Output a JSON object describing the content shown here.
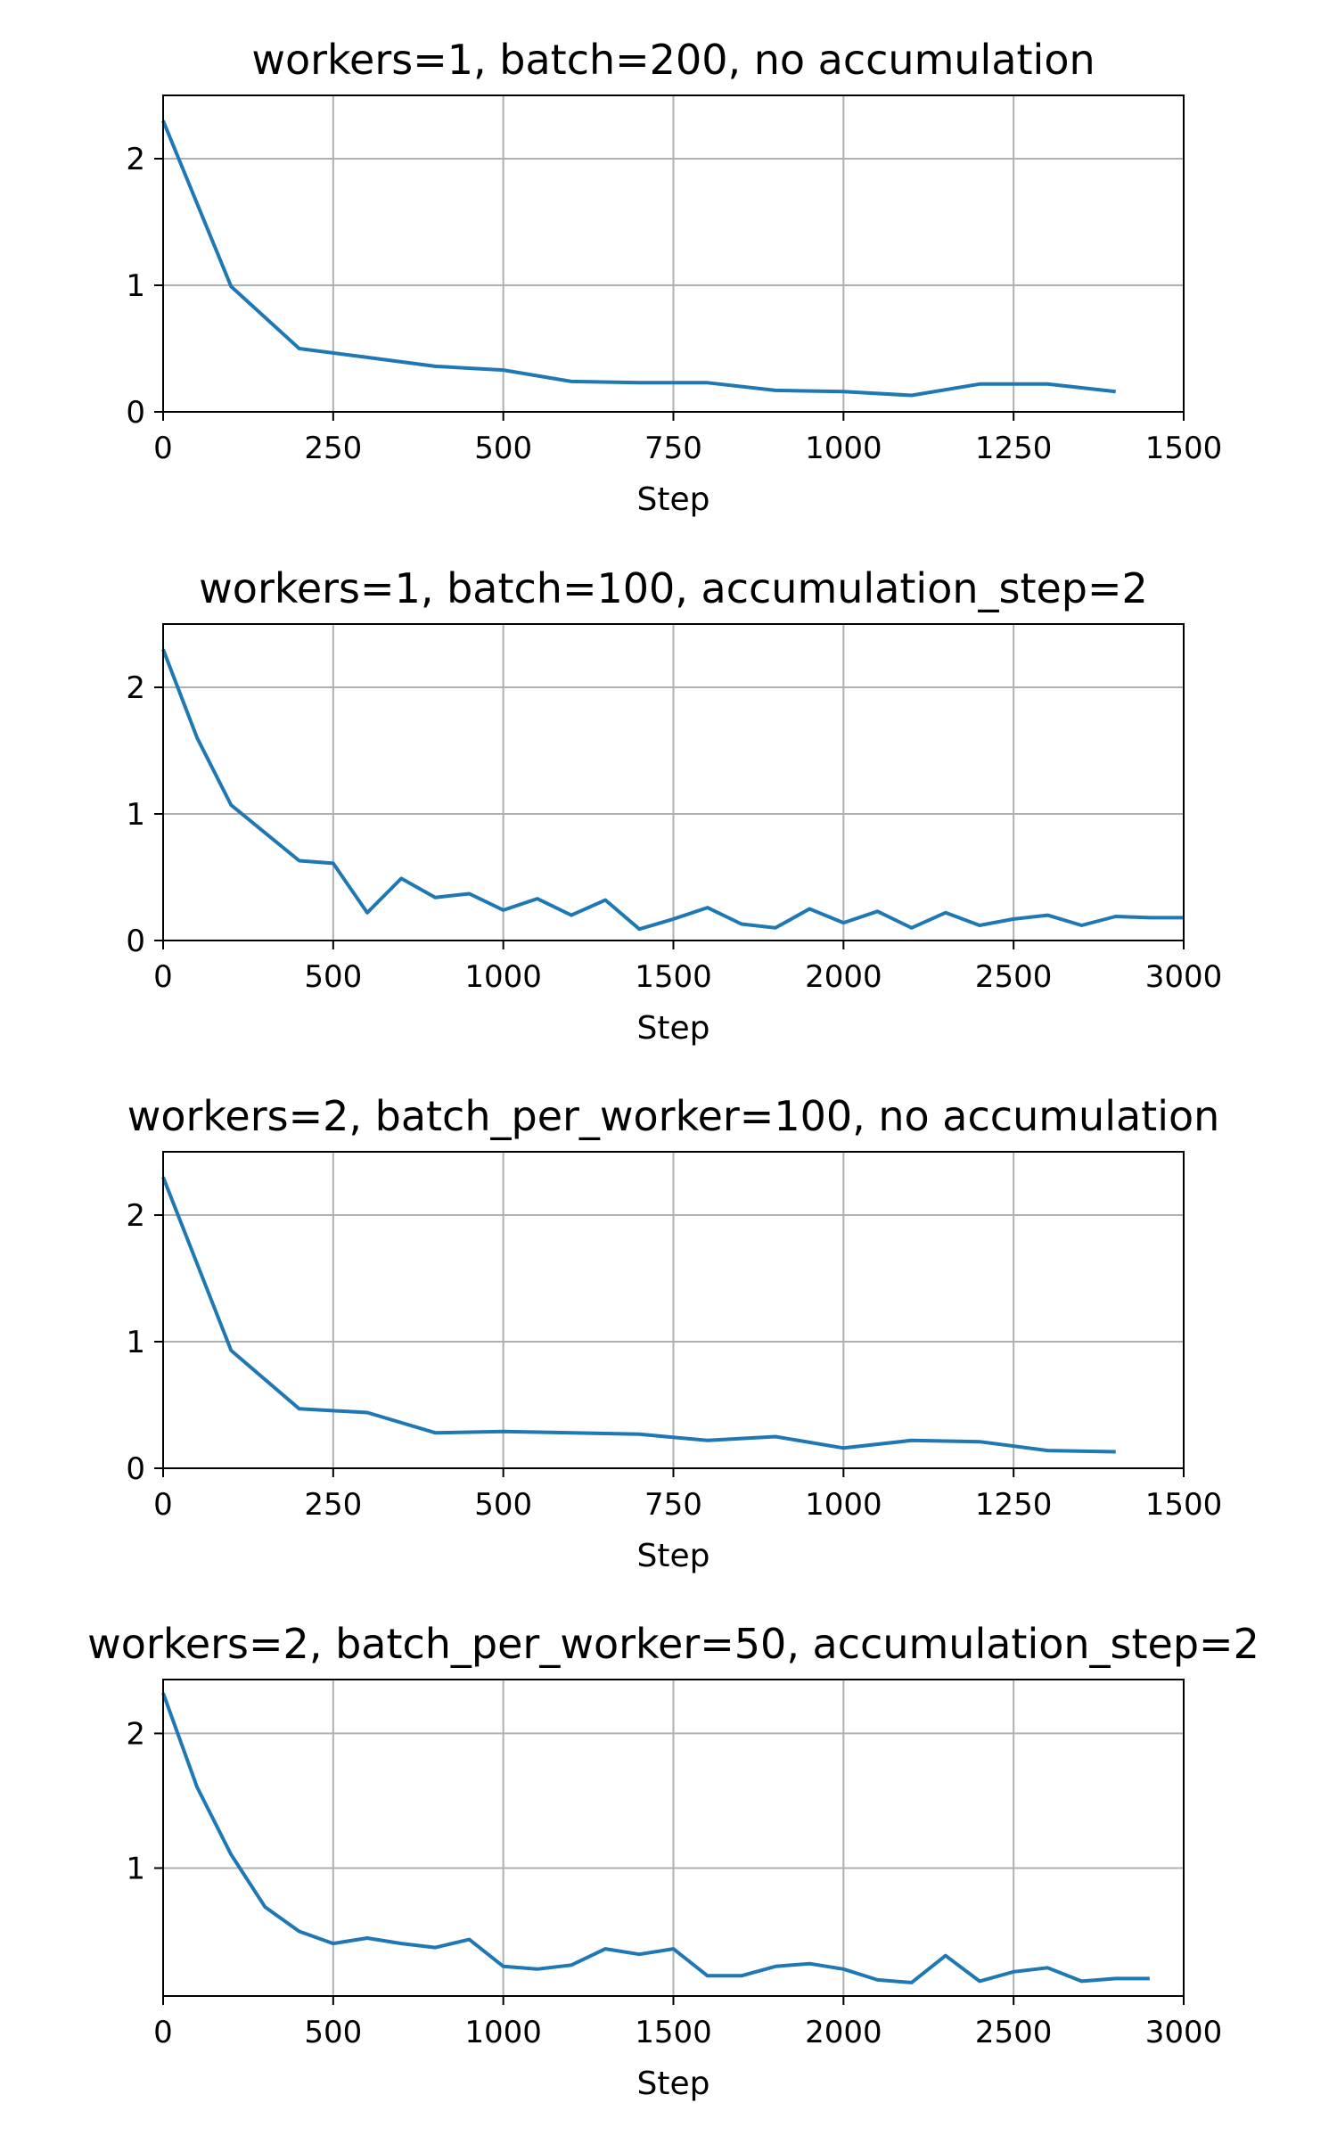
{
  "chart_data": [
    {
      "type": "line",
      "title": "workers=1, batch=200, no accumulation",
      "xlabel": "Step",
      "ylabel": "",
      "xlim": [
        0,
        1500
      ],
      "ylim": [
        0,
        2.5
      ],
      "xticks": [
        0,
        250,
        500,
        750,
        1000,
        1250,
        1500
      ],
      "yticks": [
        0,
        1,
        2
      ],
      "grid": true,
      "color": "#1f77b4",
      "x": [
        0,
        100,
        200,
        300,
        400,
        500,
        600,
        700,
        800,
        900,
        1000,
        1100,
        1200,
        1300,
        1400
      ],
      "y": [
        2.3,
        0.99,
        0.5,
        0.43,
        0.36,
        0.33,
        0.24,
        0.23,
        0.23,
        0.17,
        0.16,
        0.13,
        0.22,
        0.22,
        0.16
      ]
    },
    {
      "type": "line",
      "title": "workers=1, batch=100, accumulation_step=2",
      "xlabel": "Step",
      "ylabel": "",
      "xlim": [
        0,
        3000
      ],
      "ylim": [
        0,
        2.5
      ],
      "xticks": [
        0,
        500,
        1000,
        1500,
        2000,
        2500,
        3000
      ],
      "yticks": [
        0,
        1,
        2
      ],
      "grid": true,
      "color": "#1f77b4",
      "x": [
        0,
        100,
        200,
        300,
        400,
        500,
        600,
        700,
        800,
        900,
        1000,
        1100,
        1200,
        1300,
        1400,
        1500,
        1600,
        1700,
        1800,
        1900,
        2000,
        2100,
        2200,
        2300,
        2400,
        2500,
        2600,
        2700,
        2800,
        2900,
        3000
      ],
      "y": [
        2.3,
        1.6,
        1.07,
        0.85,
        0.63,
        0.61,
        0.22,
        0.49,
        0.34,
        0.37,
        0.24,
        0.33,
        0.2,
        0.32,
        0.09,
        0.17,
        0.26,
        0.13,
        0.1,
        0.25,
        0.14,
        0.23,
        0.1,
        0.22,
        0.12,
        0.17,
        0.2,
        0.12,
        0.19,
        0.18,
        0.18
      ]
    },
    {
      "type": "line",
      "title": "workers=2, batch_per_worker=100, no accumulation",
      "xlabel": "Step",
      "ylabel": "",
      "xlim": [
        0,
        1500
      ],
      "ylim": [
        0,
        2.5
      ],
      "xticks": [
        0,
        250,
        500,
        750,
        1000,
        1250,
        1500
      ],
      "yticks": [
        0,
        1,
        2
      ],
      "grid": true,
      "color": "#1f77b4",
      "x": [
        0,
        100,
        200,
        300,
        400,
        500,
        600,
        700,
        800,
        900,
        1000,
        1100,
        1200,
        1300,
        1400
      ],
      "y": [
        2.3,
        0.93,
        0.47,
        0.44,
        0.28,
        0.29,
        0.28,
        0.27,
        0.22,
        0.25,
        0.16,
        0.22,
        0.21,
        0.14,
        0.13
      ]
    },
    {
      "type": "line",
      "title": "workers=2, batch_per_worker=50, accumulation_step=2",
      "xlabel": "Step",
      "ylabel": "",
      "xlim": [
        0,
        3000
      ],
      "ylim": [
        0.05,
        2.4
      ],
      "xticks": [
        0,
        500,
        1000,
        1500,
        2000,
        2500,
        3000
      ],
      "yticks": [
        1,
        2
      ],
      "grid": true,
      "color": "#1f77b4",
      "x": [
        0,
        100,
        200,
        300,
        400,
        500,
        600,
        700,
        800,
        900,
        1000,
        1100,
        1200,
        1300,
        1400,
        1500,
        1600,
        1700,
        1800,
        1900,
        2000,
        2100,
        2200,
        2300,
        2400,
        2500,
        2600,
        2700,
        2800,
        2900
      ],
      "y": [
        2.3,
        1.6,
        1.1,
        0.71,
        0.53,
        0.44,
        0.48,
        0.44,
        0.41,
        0.47,
        0.27,
        0.25,
        0.28,
        0.4,
        0.36,
        0.4,
        0.2,
        0.2,
        0.27,
        0.29,
        0.25,
        0.17,
        0.15,
        0.35,
        0.16,
        0.23,
        0.26,
        0.16,
        0.18,
        0.18
      ]
    }
  ]
}
